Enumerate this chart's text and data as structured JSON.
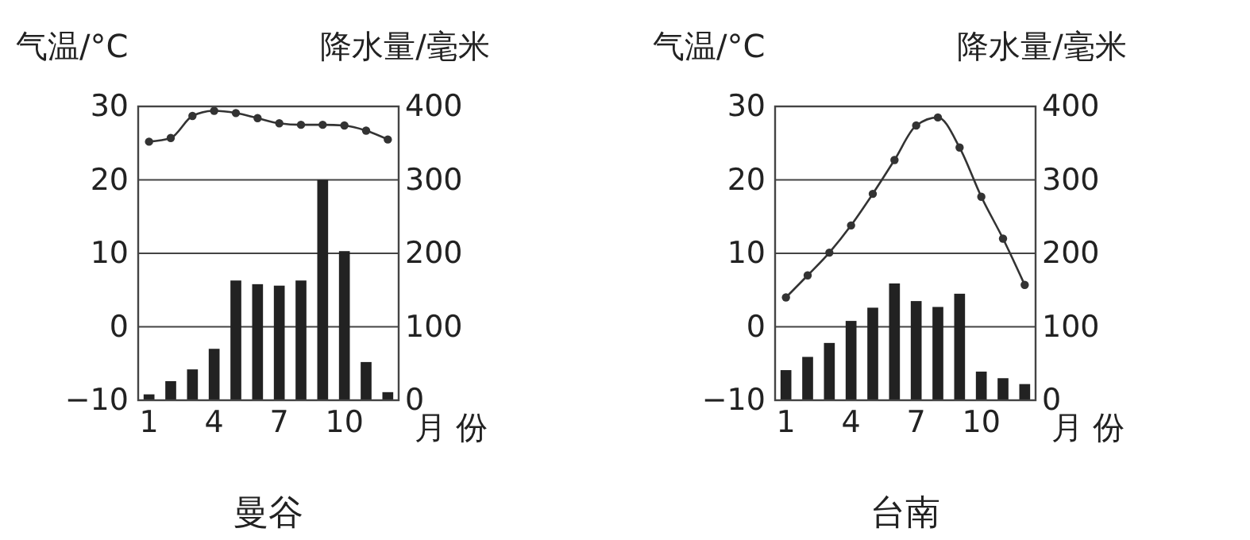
{
  "chart_data": [
    {
      "type": "bar",
      "title": "曼谷",
      "ylabel": "气温/°C",
      "y2label": "降水量/毫米",
      "xlabel": "月份",
      "categories": [
        "1",
        null,
        null,
        "4",
        null,
        null,
        "7",
        null,
        null,
        "10",
        null,
        null
      ],
      "ylim": [
        -10,
        30
      ],
      "yticks": [
        {
          "value": -10,
          "label": "−10"
        },
        0,
        10,
        20,
        30
      ],
      "y2lim": [
        0,
        400
      ],
      "y2ticks": [
        0,
        100,
        200,
        300,
        400
      ],
      "grid": "y",
      "series": [
        {
          "type": "line",
          "axis": "y",
          "color": "#333333",
          "marker": "circle",
          "line_style": "solid",
          "values": [
            25.2,
            25.7,
            28.7,
            29.4,
            29.1,
            28.4,
            27.7,
            27.5,
            27.5,
            27.4,
            26.7,
            25.5
          ]
        },
        {
          "axis": "y2",
          "color": "#222222",
          "values": [
            8,
            26,
            42,
            70,
            163,
            158,
            156,
            163,
            300,
            203,
            52,
            11
          ]
        }
      ]
    },
    {
      "type": "bar",
      "title": "台南",
      "ylabel": "气温/°C",
      "y2label": "降水量/毫米",
      "xlabel": "月份",
      "categories": [
        "1",
        null,
        null,
        "4",
        null,
        null,
        "7",
        null,
        null,
        "10",
        null,
        null
      ],
      "ylim": [
        -10,
        30
      ],
      "yticks": [
        {
          "value": -10,
          "label": "−10"
        },
        0,
        10,
        20,
        30
      ],
      "y2lim": [
        0,
        400
      ],
      "y2ticks": [
        0,
        100,
        200,
        300,
        400
      ],
      "grid": "y",
      "series": [
        {
          "type": "line",
          "axis": "y",
          "color": "#333333",
          "marker": "circle",
          "line_style": "solid",
          "values": [
            4.0,
            7.0,
            10.1,
            13.8,
            18.1,
            22.7,
            27.4,
            28.5,
            24.4,
            17.7,
            12.0,
            5.7
          ]
        },
        {
          "axis": "y2",
          "color": "#222222",
          "values": [
            41,
            59,
            78,
            108,
            126,
            159,
            135,
            127,
            145,
            39,
            30,
            22
          ]
        }
      ]
    }
  ]
}
